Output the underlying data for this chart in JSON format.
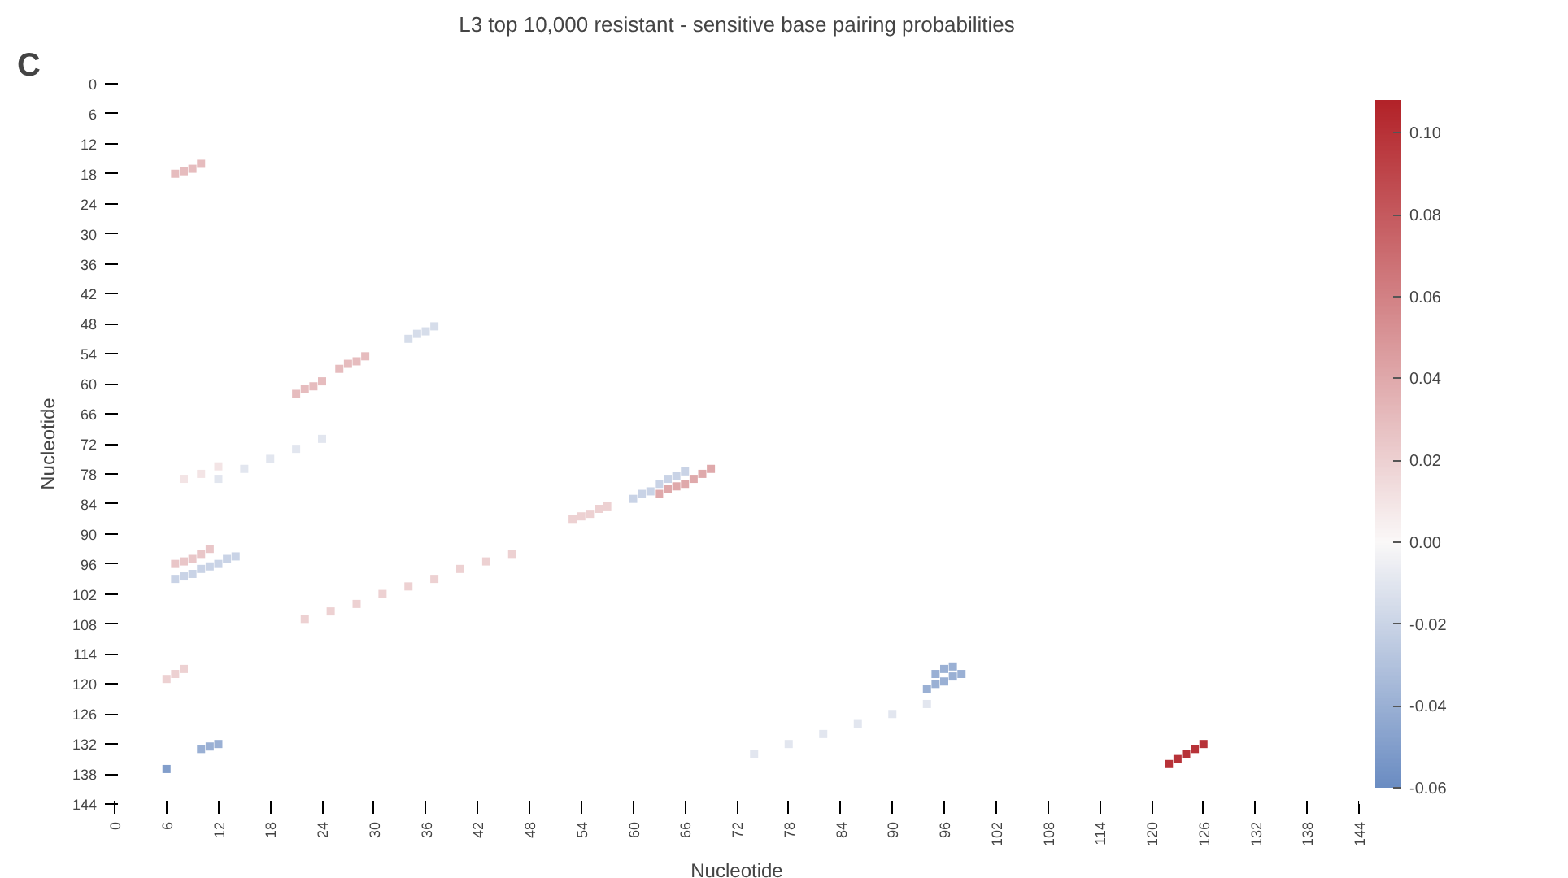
{
  "chart_data": {
    "type": "scatter",
    "title": "L3 top 10,000 resistant - sensitive base pairing probabilities",
    "xlabel": "Nucleotide",
    "ylabel": "Nucleotide",
    "annotations": [
      "C"
    ],
    "marker": "square",
    "grid": false,
    "x": [
      7,
      8,
      9,
      10,
      26,
      27,
      28,
      29,
      34,
      35,
      36,
      37,
      21,
      22,
      23,
      24,
      7,
      8,
      9,
      10,
      11,
      7,
      8,
      9,
      10,
      11,
      12,
      13,
      14,
      22,
      25,
      28,
      31,
      34,
      37,
      40,
      43,
      46,
      6,
      7,
      8,
      6,
      10,
      11,
      12,
      122,
      123,
      124,
      125,
      126,
      63,
      64,
      65,
      66,
      67,
      68,
      69,
      60,
      61,
      62,
      63,
      64,
      65,
      66,
      53,
      54,
      55,
      56,
      57,
      94,
      95,
      96,
      97,
      98,
      95,
      96,
      97,
      74,
      78,
      82,
      86,
      90,
      94,
      12,
      15,
      18,
      21,
      24,
      8,
      10,
      12
    ],
    "values": [
      18,
      17.5,
      17,
      16,
      57,
      56,
      55.5,
      54.5,
      51,
      50,
      49.5,
      48.5,
      62,
      61,
      60.5,
      59.5,
      96,
      95.5,
      95,
      94,
      93,
      99,
      98.5,
      98,
      97,
      96.5,
      96,
      95,
      94.5,
      107,
      105.5,
      104,
      102,
      100.5,
      99,
      97,
      95.5,
      94,
      119,
      118,
      117,
      137,
      133,
      132.5,
      132,
      136,
      135,
      134,
      133,
      132,
      82,
      81,
      80.5,
      80,
      79,
      78,
      77,
      83,
      82,
      81.5,
      80,
      79,
      78.5,
      77.5,
      87,
      86.5,
      86,
      85,
      84.5,
      121,
      120,
      119.5,
      118.5,
      118,
      118,
      117,
      116.5,
      134,
      132,
      130,
      128,
      126,
      124,
      79,
      77,
      75,
      73,
      71,
      79,
      78,
      76.5
    ],
    "cvalues": [
      0.03,
      0.03,
      0.03,
      0.03,
      0.03,
      0.03,
      0.03,
      0.03,
      -0.015,
      -0.015,
      -0.015,
      -0.015,
      0.03,
      0.03,
      0.03,
      0.03,
      0.025,
      0.025,
      0.025,
      0.025,
      0.025,
      -0.02,
      -0.02,
      -0.02,
      -0.02,
      -0.02,
      -0.02,
      -0.02,
      -0.02,
      0.02,
      0.02,
      0.02,
      0.02,
      0.02,
      0.02,
      0.02,
      0.02,
      0.02,
      0.02,
      0.02,
      0.02,
      -0.05,
      -0.04,
      -0.04,
      -0.04,
      0.1,
      0.1,
      0.1,
      0.1,
      0.1,
      0.04,
      0.04,
      0.04,
      0.04,
      0.04,
      0.04,
      0.04,
      -0.02,
      -0.02,
      -0.02,
      -0.02,
      -0.02,
      -0.02,
      -0.02,
      0.02,
      0.02,
      0.02,
      0.02,
      0.02,
      -0.04,
      -0.04,
      -0.04,
      -0.04,
      -0.04,
      -0.04,
      -0.04,
      -0.04,
      -0.01,
      -0.01,
      -0.01,
      -0.01,
      -0.01,
      -0.01,
      -0.01,
      -0.01,
      -0.01,
      -0.01,
      -0.01,
      0.01,
      0.01,
      0.01
    ],
    "xlim": [
      0,
      144
    ],
    "ylim": [
      144,
      0
    ],
    "xticks": [
      0,
      6,
      12,
      18,
      24,
      30,
      36,
      42,
      48,
      54,
      60,
      66,
      72,
      78,
      84,
      90,
      96,
      102,
      108,
      114,
      120,
      126,
      132,
      138,
      144
    ],
    "yticks": [
      0,
      6,
      12,
      18,
      24,
      30,
      36,
      42,
      48,
      54,
      60,
      66,
      72,
      78,
      84,
      90,
      96,
      102,
      108,
      114,
      120,
      126,
      132,
      138,
      144
    ],
    "clim": [
      -0.06,
      0.108
    ],
    "cticks": [
      {
        "value": -0.06,
        "label": "-0.06"
      },
      {
        "value": -0.04,
        "label": "-0.04"
      },
      {
        "value": -0.02,
        "label": "-0.02"
      },
      {
        "value": 0,
        "label": "0.00"
      },
      {
        "value": 0.02,
        "label": "0.02"
      },
      {
        "value": 0.04,
        "label": "0.04"
      },
      {
        "value": 0.06,
        "label": "0.06"
      },
      {
        "value": 0.08,
        "label": "0.08"
      },
      {
        "value": 0.1,
        "label": "0.10"
      }
    ]
  }
}
